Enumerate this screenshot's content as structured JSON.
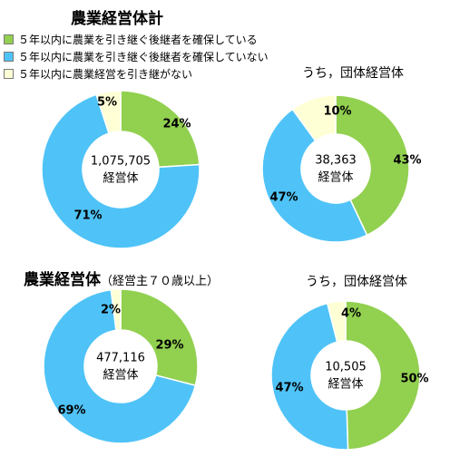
{
  "main_title": "農業経営体計",
  "legend": [
    {
      "label": "５年以内に農業を引き継ぐ後継者を確保している",
      "color": "#92d050"
    },
    {
      "label": "５年以内に農業を引き継ぐ後継者を確保していない",
      "color": "#4fc3f7"
    },
    {
      "label": "５年以内に農業経営を引き継がない",
      "color": "#ffffd6"
    }
  ],
  "chart_data": [
    {
      "type": "pie",
      "title": "農業経営体計",
      "center_value": "1,075,705",
      "center_unit": "経営体",
      "slices": [
        {
          "label": "５年以内に農業を引き継ぐ後継者を確保している",
          "value": 24,
          "display": "24%"
        },
        {
          "label": "５年以内に農業を引き継ぐ後継者を確保していない",
          "value": 71,
          "display": "71%"
        },
        {
          "label": "５年以内に農業経営を引き継がない",
          "value": 5,
          "display": "5%"
        }
      ]
    },
    {
      "type": "pie",
      "title": "うち，団体経営体",
      "center_value": "38,363",
      "center_unit": "経営体",
      "slices": [
        {
          "label": "５年以内に農業を引き継ぐ後継者を確保している",
          "value": 43,
          "display": "43%"
        },
        {
          "label": "５年以内に農業を引き継ぐ後継者を確保していない",
          "value": 47,
          "display": "47%"
        },
        {
          "label": "５年以内に農業経営を引き継がない",
          "value": 10,
          "display": "10%"
        }
      ]
    },
    {
      "type": "pie",
      "title": "農業経営体",
      "title_note": "（経営主７０歳以上）",
      "center_value": "477,116",
      "center_unit": "経営体",
      "slices": [
        {
          "label": "５年以内に農業を引き継ぐ後継者を確保している",
          "value": 29,
          "display": "29%"
        },
        {
          "label": "５年以内に農業を引き継ぐ後継者を確保していない",
          "value": 69,
          "display": "69%"
        },
        {
          "label": "５年以内に農業経営を引き継がない",
          "value": 2,
          "display": "2%"
        }
      ]
    },
    {
      "type": "pie",
      "title": "うち，団体経営体",
      "center_value": "10,505",
      "center_unit": "経営体",
      "slices": [
        {
          "label": "５年以内に農業を引き継ぐ後継者を確保している",
          "value": 50,
          "display": "50%"
        },
        {
          "label": "５年以内に農業を引き継ぐ後継者を確保していない",
          "value": 47,
          "display": "47%"
        },
        {
          "label": "５年以内に農業経営を引き継がない",
          "value": 4,
          "display": "4%"
        }
      ]
    }
  ]
}
